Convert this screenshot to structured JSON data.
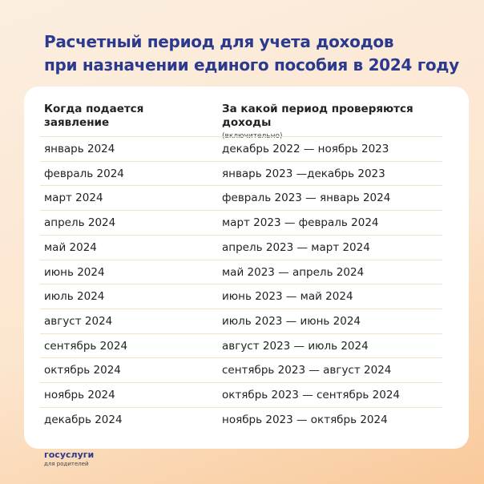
{
  "header": {
    "title_lines": [
      "Расчетный период для учета доходов",
      "при назначении единого пособия в 2024 году"
    ]
  },
  "table": {
    "columns": [
      {
        "label": "Когда подается заявление"
      },
      {
        "label": "За какой период проверяются доходы",
        "note": "(включительно)"
      }
    ],
    "rows": [
      [
        "январь 2024",
        "декабрь 2022 — ноябрь 2023"
      ],
      [
        "февраль 2024",
        "январь 2023 —декабрь 2023"
      ],
      [
        "март 2024",
        "февраль 2023 — январь 2024"
      ],
      [
        "апрель 2024",
        "март 2023 — февраль 2024"
      ],
      [
        "май 2024",
        "апрель 2023 — март 2024"
      ],
      [
        "июнь 2024",
        "май 2023 — апрель 2024"
      ],
      [
        "июль 2024",
        "июнь 2023 — май 2024"
      ],
      [
        "август 2024",
        "июль 2023 — июнь 2024"
      ],
      [
        "сентябрь 2024",
        "август 2023 — июль 2024"
      ],
      [
        "октябрь 2024",
        "сентябрь 2023 — август 2024"
      ],
      [
        "ноябрь 2024",
        "октябрь 2023 — сентябрь 2024"
      ],
      [
        "декабрь 2024",
        "ноябрь 2023 — октябрь 2024"
      ]
    ]
  },
  "footer": {
    "logo": "госуслуги",
    "subtitle": "для родителей"
  }
}
